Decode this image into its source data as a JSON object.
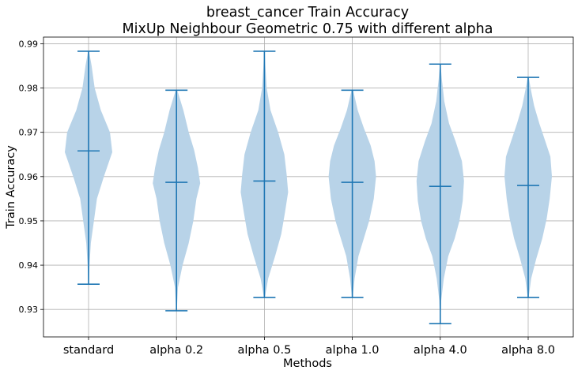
{
  "chart_data": {
    "type": "violin",
    "title": "breast_cancer Train Accuracy",
    "subtitle": "MixUp Neighbour Geometric 0.75 with different alpha",
    "xlabel": "Methods",
    "ylabel": "Train Accuracy",
    "ylim": [
      0.9238,
      0.9915
    ],
    "yticks": [
      "0.93",
      "0.94",
      "0.95",
      "0.96",
      "0.97",
      "0.98",
      "0.99"
    ],
    "grid": true,
    "color": "#1f77b4",
    "fill_color": "#b8d3e8",
    "categories": [
      "standard",
      "alpha 0.2",
      "alpha 0.5",
      "alpha 1.0",
      "alpha 4.0",
      "alpha 8.0"
    ],
    "series": [
      {
        "min": 0.9357,
        "median": 0.9658,
        "max": 0.9883,
        "density": [
          [
            0.9357,
            0.2
          ],
          [
            0.94,
            0.6
          ],
          [
            0.945,
            1.5
          ],
          [
            0.95,
            3.5
          ],
          [
            0.955,
            5.5
          ],
          [
            0.96,
            10
          ],
          [
            0.9655,
            15.5
          ],
          [
            0.97,
            14
          ],
          [
            0.975,
            8
          ],
          [
            0.98,
            4
          ],
          [
            0.985,
            2
          ],
          [
            0.9883,
            0.3
          ]
        ]
      },
      {
        "min": 0.9297,
        "median": 0.9587,
        "max": 0.9795,
        "density": [
          [
            0.9297,
            0.2
          ],
          [
            0.935,
            1
          ],
          [
            0.94,
            4
          ],
          [
            0.945,
            8
          ],
          [
            0.95,
            11
          ],
          [
            0.955,
            13
          ],
          [
            0.9585,
            15.5
          ],
          [
            0.962,
            14
          ],
          [
            0.966,
            11.5
          ],
          [
            0.97,
            8
          ],
          [
            0.975,
            4.5
          ],
          [
            0.9795,
            0.5
          ]
        ]
      },
      {
        "min": 0.9327,
        "median": 0.959,
        "max": 0.9883,
        "density": [
          [
            0.9327,
            0.3
          ],
          [
            0.937,
            2.5
          ],
          [
            0.942,
            7
          ],
          [
            0.947,
            11
          ],
          [
            0.952,
            13.5
          ],
          [
            0.9565,
            15.5
          ],
          [
            0.9605,
            14.5
          ],
          [
            0.965,
            13
          ],
          [
            0.97,
            9
          ],
          [
            0.975,
            4
          ],
          [
            0.98,
            1.5
          ],
          [
            0.985,
            0.6
          ],
          [
            0.9883,
            0.2
          ]
        ]
      },
      {
        "min": 0.9327,
        "median": 0.9587,
        "max": 0.9795,
        "density": [
          [
            0.9327,
            0.2
          ],
          [
            0.937,
            1.5
          ],
          [
            0.942,
            4
          ],
          [
            0.946,
            7.5
          ],
          [
            0.95,
            11
          ],
          [
            0.955,
            14
          ],
          [
            0.96,
            15.5
          ],
          [
            0.9635,
            14.5
          ],
          [
            0.967,
            12
          ],
          [
            0.971,
            7.5
          ],
          [
            0.975,
            3.5
          ],
          [
            0.9795,
            0.5
          ]
        ]
      },
      {
        "min": 0.9268,
        "median": 0.9578,
        "max": 0.9854,
        "density": [
          [
            0.9268,
            0.1
          ],
          [
            0.932,
            0.6
          ],
          [
            0.937,
            2.2
          ],
          [
            0.942,
            5
          ],
          [
            0.946,
            9
          ],
          [
            0.95,
            12
          ],
          [
            0.9545,
            14
          ],
          [
            0.959,
            14.8
          ],
          [
            0.9635,
            13.5
          ],
          [
            0.968,
            9.5
          ],
          [
            0.972,
            5.5
          ],
          [
            0.977,
            2.5
          ],
          [
            0.982,
            1
          ],
          [
            0.9854,
            0.2
          ]
        ]
      },
      {
        "min": 0.9327,
        "median": 0.958,
        "max": 0.9824,
        "density": [
          [
            0.9327,
            0.3
          ],
          [
            0.937,
            2
          ],
          [
            0.9415,
            5.5
          ],
          [
            0.946,
            9.5
          ],
          [
            0.9505,
            12.5
          ],
          [
            0.955,
            14.5
          ],
          [
            0.96,
            16
          ],
          [
            0.9645,
            15
          ],
          [
            0.968,
            11.5
          ],
          [
            0.972,
            7.5
          ],
          [
            0.976,
            4
          ],
          [
            0.98,
            1.6
          ],
          [
            0.9824,
            0.4
          ]
        ]
      }
    ]
  }
}
